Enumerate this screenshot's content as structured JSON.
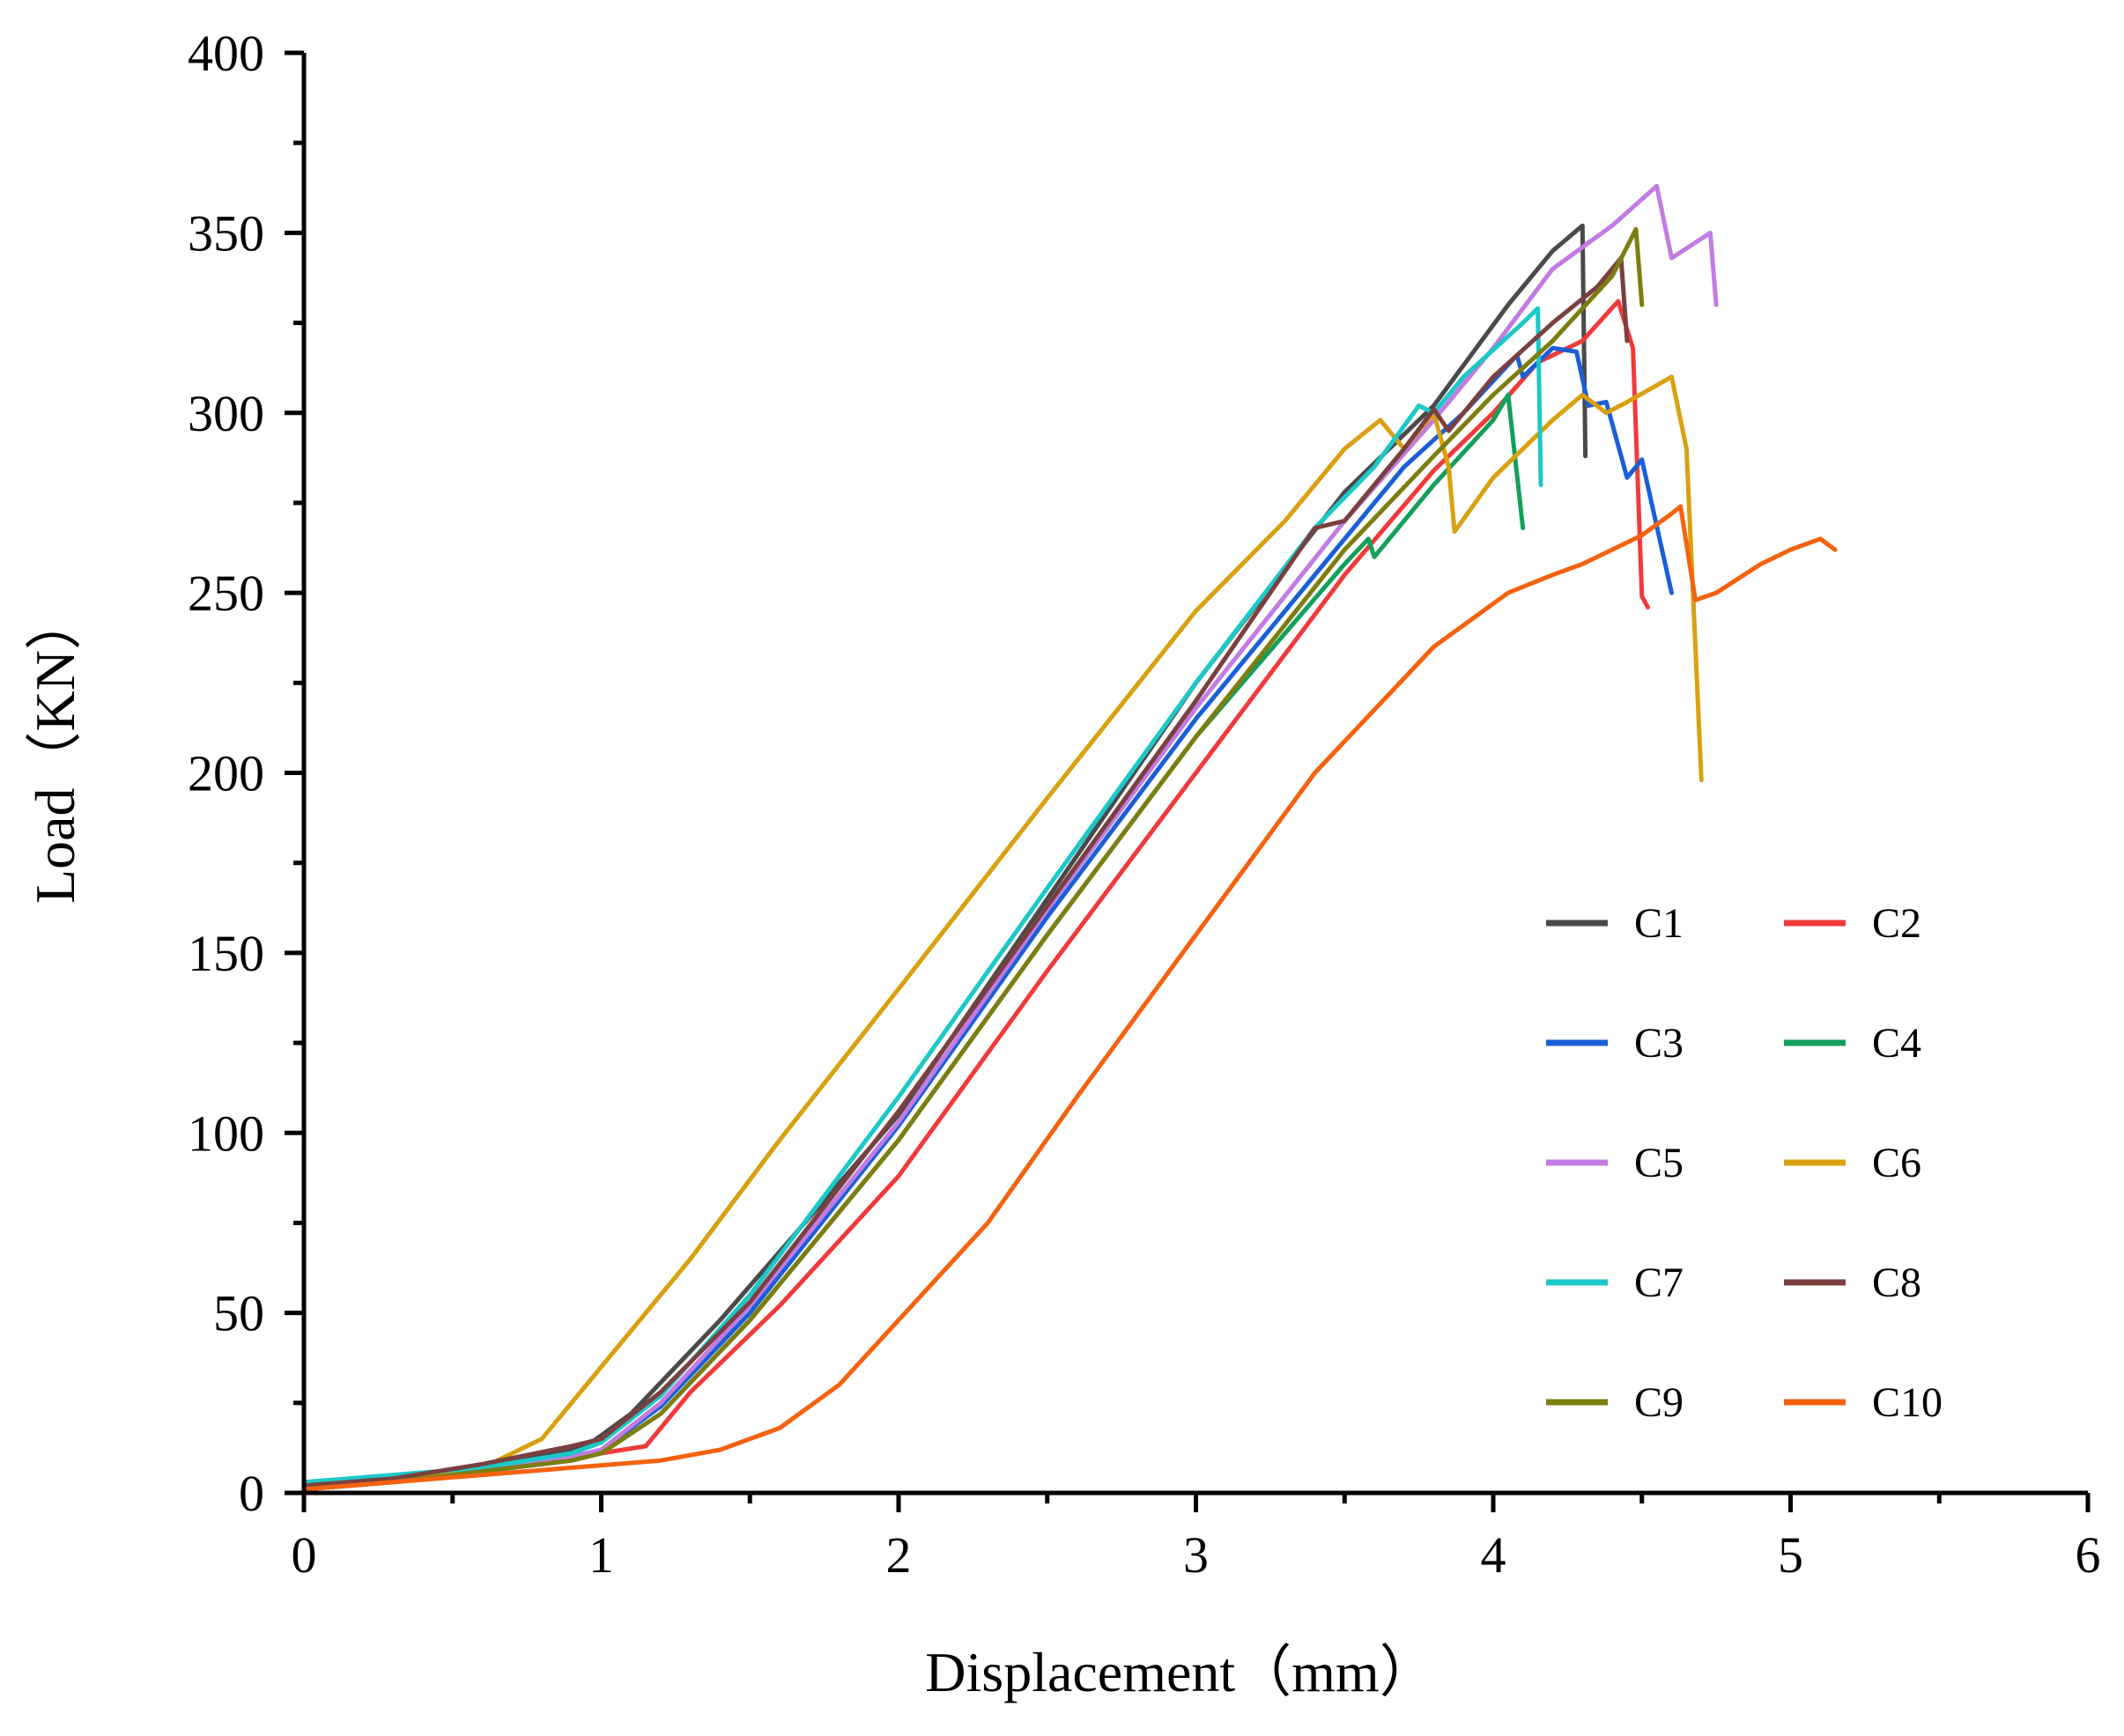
{
  "chart_data": {
    "type": "line",
    "title": "",
    "xlabel": "Displacement（mm）",
    "ylabel": "Load（KN）",
    "xlim": [
      0,
      6
    ],
    "ylim": [
      0,
      400
    ],
    "xticks": [
      "0",
      "1",
      "2",
      "3",
      "4",
      "5",
      "6"
    ],
    "yticks": [
      "0",
      "50",
      "100",
      "150",
      "200",
      "250",
      "300",
      "350",
      "400"
    ],
    "grid": false,
    "legend_position": "bottom-right",
    "series": [
      {
        "name": "C1",
        "color": "#4a4a4a",
        "points": [
          [
            0,
            2
          ],
          [
            0.2,
            4
          ],
          [
            0.5,
            6
          ],
          [
            0.75,
            10
          ],
          [
            0.95,
            13
          ],
          [
            1.1,
            22
          ],
          [
            1.4,
            48
          ],
          [
            2.0,
            105
          ],
          [
            2.5,
            165
          ],
          [
            3.0,
            225
          ],
          [
            3.5,
            278
          ],
          [
            3.8,
            302
          ],
          [
            4.05,
            330
          ],
          [
            4.2,
            345
          ],
          [
            4.3,
            352
          ],
          [
            4.31,
            288
          ]
        ]
      },
      {
        "name": "C2",
        "color": "#f03a3a",
        "points": [
          [
            0,
            1
          ],
          [
            0.3,
            3
          ],
          [
            0.6,
            6
          ],
          [
            0.9,
            9
          ],
          [
            1.0,
            11
          ],
          [
            1.15,
            13
          ],
          [
            1.3,
            28
          ],
          [
            1.6,
            52
          ],
          [
            2.0,
            88
          ],
          [
            2.5,
            145
          ],
          [
            3.0,
            200
          ],
          [
            3.5,
            255
          ],
          [
            3.8,
            284
          ],
          [
            4.0,
            300
          ],
          [
            4.15,
            314
          ],
          [
            4.3,
            320
          ],
          [
            4.42,
            331
          ],
          [
            4.47,
            318
          ],
          [
            4.5,
            249
          ],
          [
            4.52,
            246
          ]
        ]
      },
      {
        "name": "C3",
        "color": "#1a5fd6",
        "points": [
          [
            0,
            2
          ],
          [
            0.3,
            4
          ],
          [
            0.6,
            7
          ],
          [
            0.9,
            10
          ],
          [
            1.0,
            12
          ],
          [
            1.2,
            24
          ],
          [
            1.5,
            50
          ],
          [
            2.0,
            102
          ],
          [
            2.5,
            160
          ],
          [
            3.0,
            215
          ],
          [
            3.5,
            265
          ],
          [
            3.7,
            285
          ],
          [
            3.9,
            300
          ],
          [
            4.08,
            316
          ],
          [
            4.1,
            310
          ],
          [
            4.2,
            318
          ],
          [
            4.28,
            317
          ],
          [
            4.32,
            302
          ],
          [
            4.38,
            303
          ],
          [
            4.45,
            282
          ],
          [
            4.5,
            287
          ],
          [
            4.6,
            250
          ]
        ]
      },
      {
        "name": "C4",
        "color": "#12a05a",
        "points": [
          [
            0,
            1
          ],
          [
            0.3,
            3
          ],
          [
            0.6,
            6
          ],
          [
            0.9,
            9
          ],
          [
            1.0,
            11
          ],
          [
            1.2,
            22
          ],
          [
            1.5,
            48
          ],
          [
            2.0,
            98
          ],
          [
            2.5,
            155
          ],
          [
            3.0,
            210
          ],
          [
            3.5,
            258
          ],
          [
            3.58,
            265
          ],
          [
            3.6,
            260
          ],
          [
            3.8,
            280
          ],
          [
            4.0,
            298
          ],
          [
            4.05,
            305
          ],
          [
            4.1,
            268
          ]
        ]
      },
      {
        "name": "C5",
        "color": "#c27be3",
        "points": [
          [
            0,
            1
          ],
          [
            0.3,
            3
          ],
          [
            0.6,
            6
          ],
          [
            0.9,
            10
          ],
          [
            1.0,
            12
          ],
          [
            1.2,
            25
          ],
          [
            1.5,
            52
          ],
          [
            2.0,
            103
          ],
          [
            2.5,
            162
          ],
          [
            3.0,
            218
          ],
          [
            3.5,
            270
          ],
          [
            3.8,
            298
          ],
          [
            4.0,
            318
          ],
          [
            4.2,
            340
          ],
          [
            4.4,
            352
          ],
          [
            4.55,
            363
          ],
          [
            4.6,
            343
          ],
          [
            4.73,
            350
          ],
          [
            4.75,
            330
          ]
        ]
      },
      {
        "name": "C6",
        "color": "#d9a010",
        "points": [
          [
            0,
            1
          ],
          [
            0.3,
            3
          ],
          [
            0.6,
            7
          ],
          [
            0.8,
            15
          ],
          [
            1.0,
            35
          ],
          [
            1.3,
            65
          ],
          [
            1.6,
            98
          ],
          [
            2.0,
            140
          ],
          [
            2.5,
            193
          ],
          [
            3.0,
            245
          ],
          [
            3.3,
            270
          ],
          [
            3.5,
            290
          ],
          [
            3.62,
            298
          ],
          [
            3.7,
            290
          ],
          [
            3.8,
            300
          ],
          [
            3.85,
            285
          ],
          [
            3.87,
            267
          ],
          [
            4.0,
            282
          ],
          [
            4.2,
            298
          ],
          [
            4.3,
            305
          ],
          [
            4.38,
            300
          ],
          [
            4.45,
            303
          ],
          [
            4.6,
            310
          ],
          [
            4.65,
            290
          ],
          [
            4.7,
            198
          ]
        ]
      },
      {
        "name": "C7",
        "color": "#1cc8c8",
        "points": [
          [
            0,
            3
          ],
          [
            0.3,
            5
          ],
          [
            0.6,
            7
          ],
          [
            0.9,
            11
          ],
          [
            1.0,
            14
          ],
          [
            1.2,
            27
          ],
          [
            1.5,
            55
          ],
          [
            2.0,
            110
          ],
          [
            2.5,
            168
          ],
          [
            3.0,
            225
          ],
          [
            3.4,
            268
          ],
          [
            3.6,
            285
          ],
          [
            3.75,
            302
          ],
          [
            3.8,
            300
          ],
          [
            3.9,
            310
          ],
          [
            4.1,
            325
          ],
          [
            4.15,
            329
          ],
          [
            4.16,
            280
          ]
        ]
      },
      {
        "name": "C8",
        "color": "#7a4040",
        "points": [
          [
            0,
            2
          ],
          [
            0.3,
            4
          ],
          [
            0.6,
            8
          ],
          [
            0.9,
            13
          ],
          [
            1.0,
            15
          ],
          [
            1.2,
            28
          ],
          [
            1.5,
            53
          ],
          [
            2.0,
            106
          ],
          [
            2.5,
            163
          ],
          [
            3.0,
            220
          ],
          [
            3.4,
            268
          ],
          [
            3.5,
            270
          ],
          [
            3.7,
            290
          ],
          [
            3.8,
            301
          ],
          [
            3.85,
            295
          ],
          [
            4.0,
            310
          ],
          [
            4.2,
            325
          ],
          [
            4.35,
            335
          ],
          [
            4.43,
            343
          ],
          [
            4.45,
            320
          ]
        ]
      },
      {
        "name": "C9",
        "color": "#7d7d10",
        "points": [
          [
            0,
            1
          ],
          [
            0.3,
            3
          ],
          [
            0.6,
            6
          ],
          [
            0.9,
            9
          ],
          [
            1.0,
            11
          ],
          [
            1.2,
            22
          ],
          [
            1.5,
            48
          ],
          [
            2.0,
            98
          ],
          [
            2.5,
            155
          ],
          [
            3.0,
            210
          ],
          [
            3.5,
            262
          ],
          [
            3.8,
            288
          ],
          [
            4.0,
            305
          ],
          [
            4.2,
            320
          ],
          [
            4.4,
            338
          ],
          [
            4.48,
            351
          ],
          [
            4.5,
            330
          ]
        ]
      },
      {
        "name": "C10",
        "color": "#f5620f",
        "points": [
          [
            0,
            1
          ],
          [
            0.3,
            3
          ],
          [
            0.6,
            5
          ],
          [
            0.9,
            7
          ],
          [
            1.2,
            9
          ],
          [
            1.4,
            12
          ],
          [
            1.6,
            18
          ],
          [
            1.8,
            30
          ],
          [
            2.0,
            48
          ],
          [
            2.3,
            75
          ],
          [
            2.6,
            110
          ],
          [
            3.0,
            155
          ],
          [
            3.4,
            200
          ],
          [
            3.8,
            235
          ],
          [
            4.05,
            250
          ],
          [
            4.2,
            255
          ],
          [
            4.3,
            258
          ],
          [
            4.5,
            266
          ],
          [
            4.6,
            272
          ],
          [
            4.63,
            274
          ],
          [
            4.68,
            248
          ],
          [
            4.75,
            250
          ],
          [
            4.9,
            258
          ],
          [
            5.0,
            262
          ],
          [
            5.1,
            265
          ],
          [
            5.15,
            262
          ]
        ]
      }
    ]
  }
}
